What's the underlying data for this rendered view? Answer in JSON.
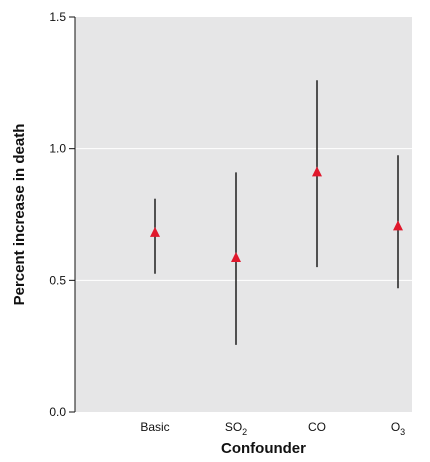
{
  "chart_data": {
    "type": "scatter",
    "title": "",
    "xlabel": "Confounder",
    "ylabel": "Percent increase in death",
    "categories": [
      {
        "base": "Basic",
        "sub": ""
      },
      {
        "base": "SO",
        "sub": "2"
      },
      {
        "base": "CO",
        "sub": ""
      },
      {
        "base": "O",
        "sub": "3"
      }
    ],
    "estimate": [
      0.68,
      0.585,
      0.91,
      0.705
    ],
    "lower": [
      0.525,
      0.255,
      0.55,
      0.47
    ],
    "upper": [
      0.81,
      0.91,
      1.26,
      0.975
    ],
    "ylim": [
      0.0,
      1.5
    ],
    "yticks": [
      "0.0",
      "0.5",
      "1.0",
      "1.5"
    ],
    "grid": true,
    "colors": {
      "plot_background": "#e6e6e7",
      "gridline": "#ffffff",
      "error_bar": "#111111",
      "marker": "#e0182c"
    }
  }
}
